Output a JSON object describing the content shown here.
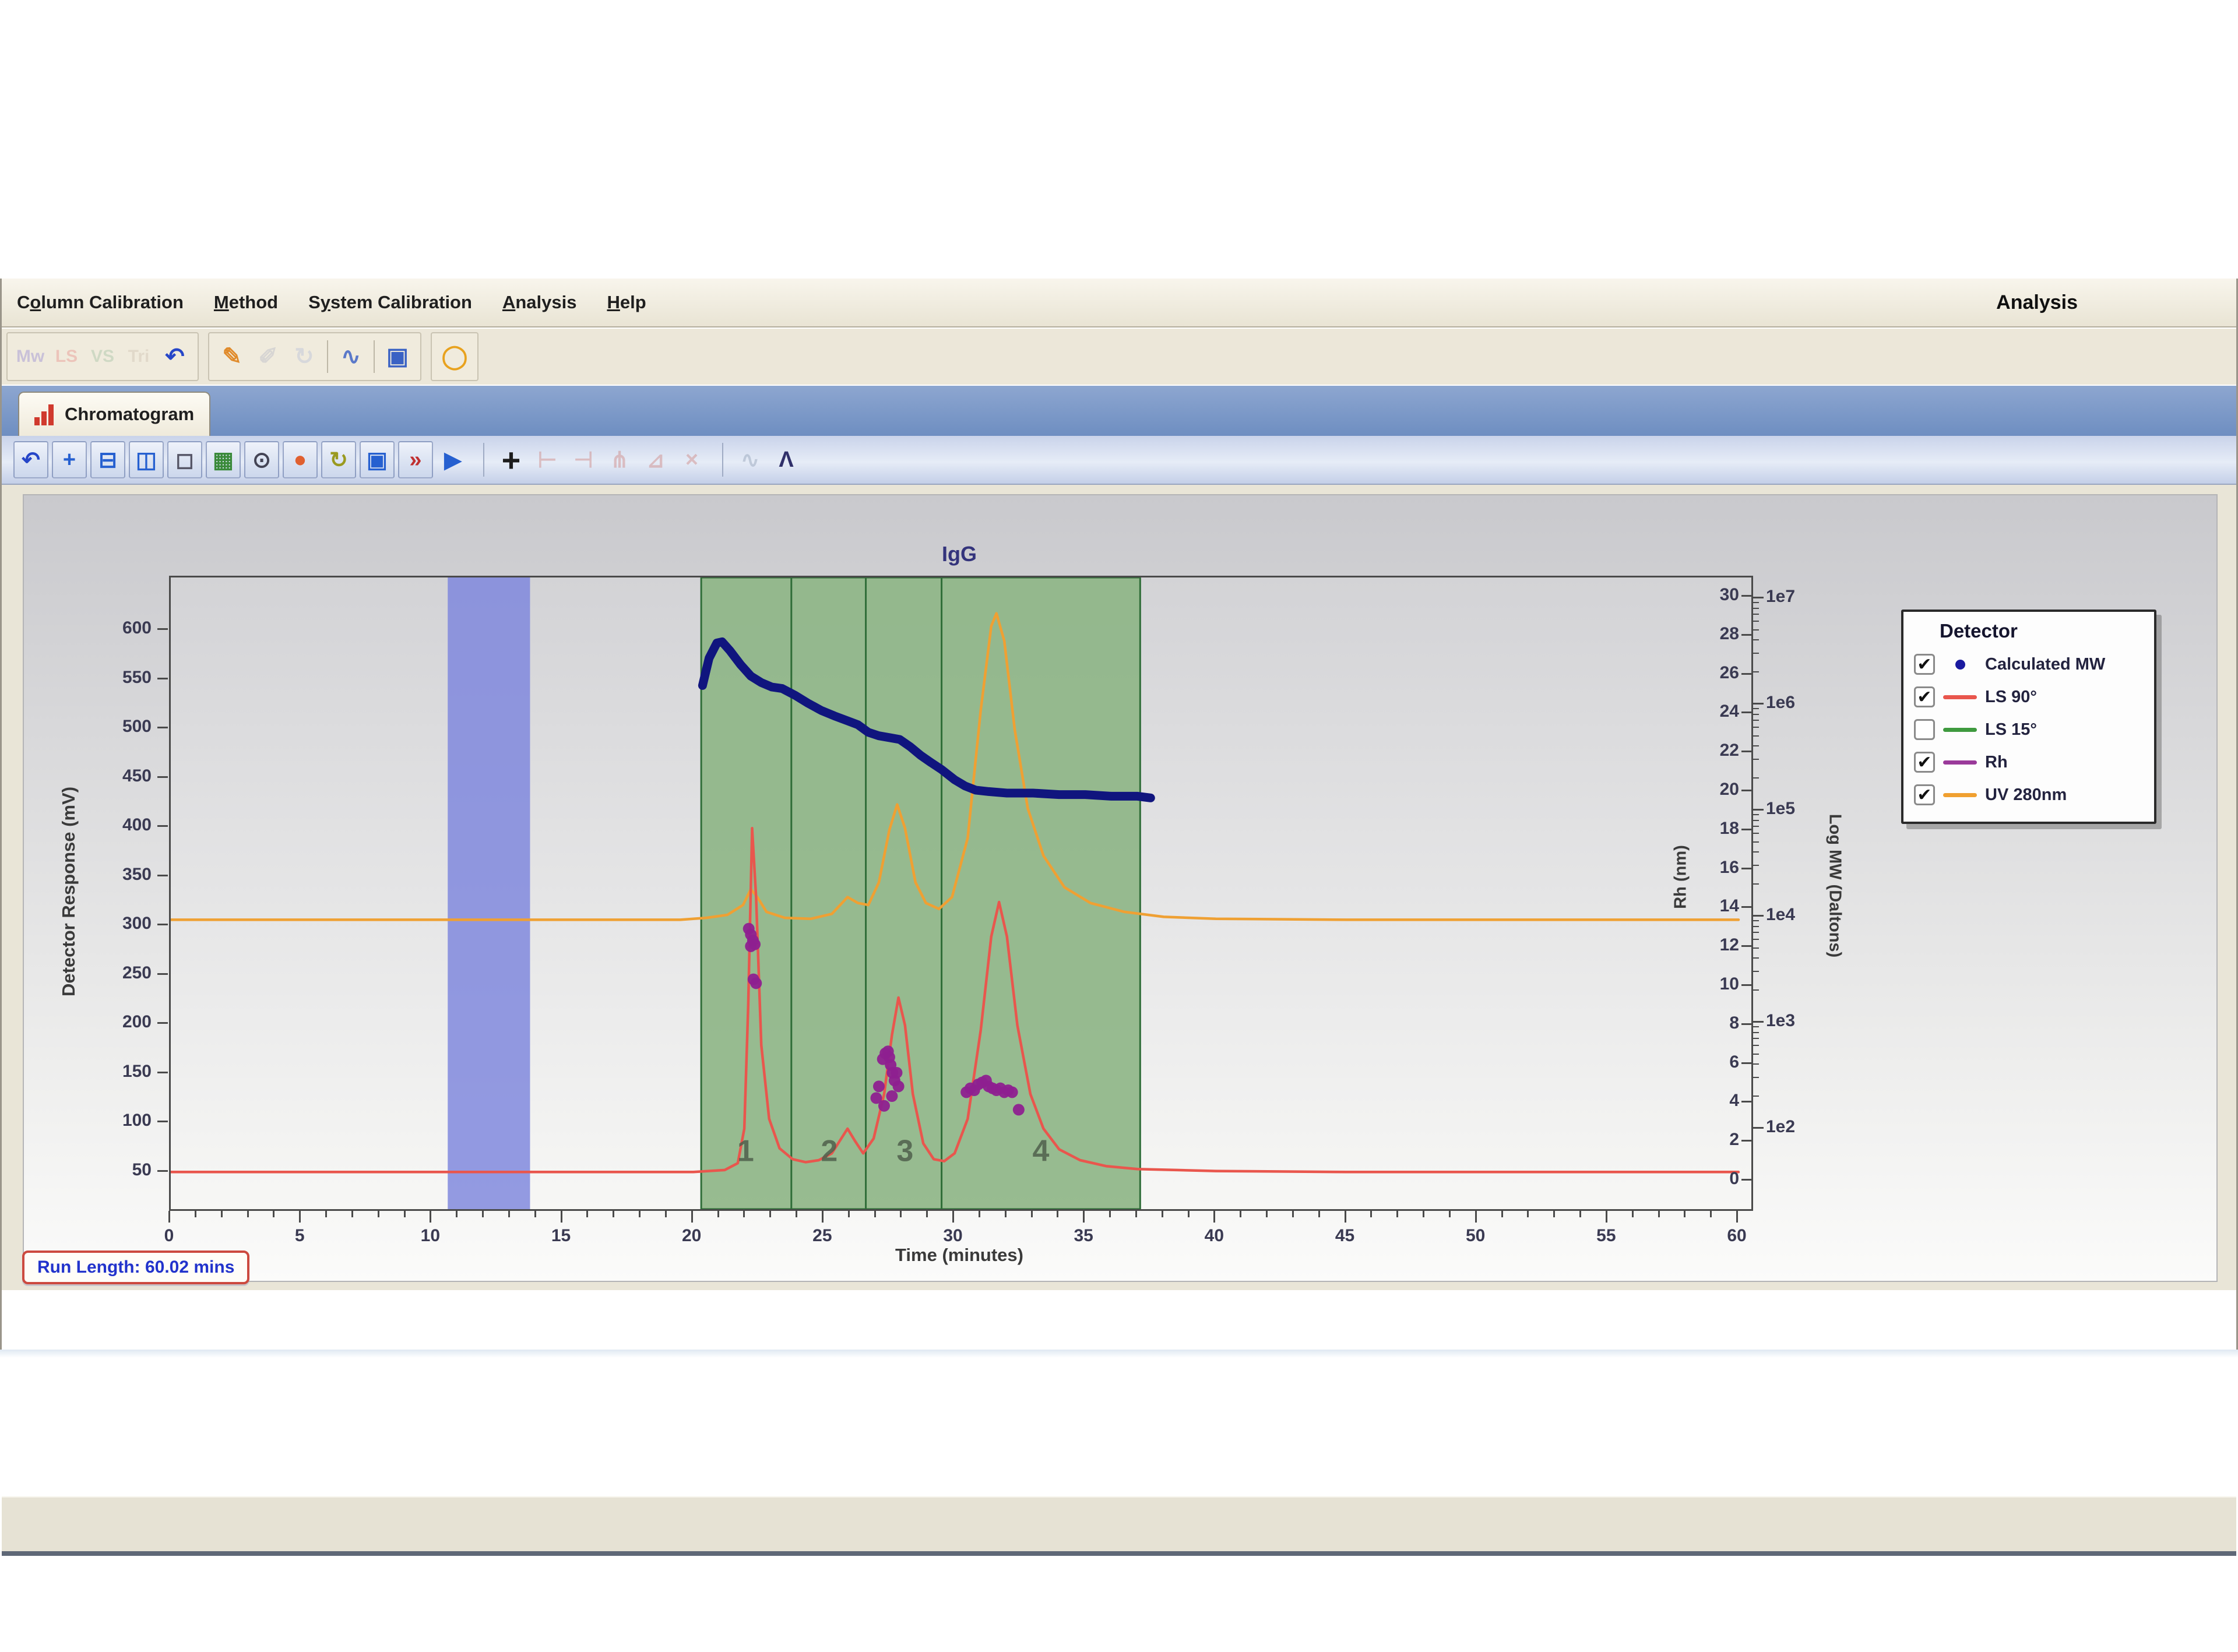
{
  "menu": {
    "items": [
      {
        "label": "Column Calibration",
        "underline_at": 1
      },
      {
        "label": "Method",
        "underline_at": 0
      },
      {
        "label": "System Calibration",
        "underline_at": 1
      },
      {
        "label": "Analysis",
        "underline_at": 0
      },
      {
        "label": "Help",
        "underline_at": 0
      }
    ],
    "right_label": "Analysis"
  },
  "toolbar_main": {
    "groups": [
      {
        "icons": [
          {
            "name": "mw-view-icon",
            "glyph": "Mw",
            "color": "#9b8fd4",
            "disabled": true
          },
          {
            "name": "ls-view-icon",
            "glyph": "LS",
            "color": "#e89790",
            "disabled": true
          },
          {
            "name": "vs-view-icon",
            "glyph": "VS",
            "color": "#a8c4a8",
            "disabled": true
          },
          {
            "name": "tri-view-icon",
            "glyph": "Tri",
            "color": "#cfc4b4",
            "disabled": true
          },
          {
            "name": "undo-icon",
            "glyph": "↶",
            "color": "#2646c8",
            "disabled": false
          }
        ]
      },
      {
        "icons": [
          {
            "name": "report-icon",
            "glyph": "✎",
            "color": "#e08a2a",
            "disabled": false
          },
          {
            "name": "edit-icon",
            "glyph": "✐",
            "color": "#b9bcc9",
            "disabled": true
          },
          {
            "name": "refresh-icon",
            "glyph": "↻",
            "color": "#b9c2d9",
            "disabled": true
          },
          {
            "name": "sep"
          },
          {
            "name": "calibration-plot-icon",
            "glyph": "∿",
            "color": "#5b79c9",
            "disabled": false
          },
          {
            "name": "sep"
          },
          {
            "name": "save-icon",
            "glyph": "▣",
            "color": "#3a62c4",
            "disabled": false
          }
        ]
      },
      {
        "icons": [
          {
            "name": "about-ring-icon",
            "glyph": "◯",
            "color": "#e8a21e",
            "disabled": false
          }
        ]
      }
    ]
  },
  "tab": {
    "label": "Chromatogram"
  },
  "toolbar_chart": {
    "icons": [
      {
        "name": "undo-zoom-icon",
        "glyph": "↶",
        "color": "#2646c8"
      },
      {
        "name": "pan-icon",
        "glyph": "+",
        "color": "#2660d0"
      },
      {
        "name": "split-horizontal-icon",
        "glyph": "⊟",
        "color": "#2660d0"
      },
      {
        "name": "split-vertical-icon",
        "glyph": "◫",
        "color": "#2660d0"
      },
      {
        "name": "zoom-box-icon",
        "glyph": "◻",
        "color": "#555566"
      },
      {
        "name": "display-options-icon",
        "glyph": "▦",
        "color": "#3a8a3a"
      },
      {
        "name": "data-cursor-icon",
        "glyph": "⊙",
        "color": "#444455"
      },
      {
        "name": "marker-icon",
        "glyph": "●",
        "color": "#e06030"
      },
      {
        "name": "autoscale-icon",
        "glyph": "↻",
        "color": "#9a9a20"
      },
      {
        "name": "info-box-icon",
        "glyph": "▣",
        "color": "#2660d0"
      },
      {
        "name": "export-chart-icon",
        "glyph": "»",
        "color": "#c03030"
      },
      {
        "name": "play-icon",
        "glyph": "▶",
        "color": "#2660d0",
        "noframe": true
      },
      {
        "name": "sep"
      },
      {
        "name": "add-peak-icon",
        "glyph": "+",
        "color": "#1c1c1c",
        "big": true,
        "noframe": true
      },
      {
        "name": "peak-start-icon",
        "glyph": "⊢",
        "color": "#cc7a74",
        "disabled": true,
        "noframe": true
      },
      {
        "name": "peak-end-icon",
        "glyph": "⊣",
        "color": "#cc7a74",
        "disabled": true,
        "noframe": true
      },
      {
        "name": "peak-split-icon",
        "glyph": "⋔",
        "color": "#cc7a74",
        "disabled": true,
        "noframe": true
      },
      {
        "name": "peak-skim-icon",
        "glyph": "⊿",
        "color": "#cc7a74",
        "disabled": true,
        "noframe": true
      },
      {
        "name": "peak-delete-icon",
        "glyph": "×",
        "color": "#cc7a74",
        "disabled": true,
        "noframe": true
      },
      {
        "name": "sep"
      },
      {
        "name": "baseline-icon",
        "glyph": "∿",
        "color": "#8a9ab0",
        "disabled": true,
        "noframe": true
      },
      {
        "name": "integrate-icon",
        "glyph": "Λ",
        "color": "#30306a",
        "noframe": true
      }
    ]
  },
  "legend": {
    "title": "Detector",
    "items": [
      {
        "label": "Calculated MW",
        "checked": true,
        "marker": "dot",
        "color": "#1a1aa0"
      },
      {
        "label": "LS 90°",
        "checked": true,
        "marker": "line",
        "color": "#e9564d"
      },
      {
        "label": "LS 15°",
        "checked": false,
        "marker": "line",
        "color": "#3f9a3f"
      },
      {
        "label": "Rh",
        "checked": true,
        "marker": "line",
        "color": "#9a3a9a"
      },
      {
        "label": "UV 280nm",
        "checked": true,
        "marker": "line",
        "color": "#f0a030"
      }
    ]
  },
  "status": {
    "run_length_label": "Run Length: 60.02 mins"
  },
  "chart_data": {
    "type": "line",
    "title": "IgG",
    "x_axis": {
      "label": "Time (minutes)",
      "min": 0,
      "max": 60,
      "major_tick_step": 5,
      "minor_tick_step": 1
    },
    "y_axis_left": {
      "label": "Detector Response (mV)",
      "ylim": [
        15,
        650
      ],
      "ticks": [
        50,
        100,
        150,
        200,
        250,
        300,
        350,
        400,
        450,
        500,
        550,
        600
      ]
    },
    "y_axis_right_inner": {
      "label": "Rh (nm)",
      "min": 0,
      "max": 30,
      "tick_step": 2
    },
    "y_axis_right_outer": {
      "label": "Log MW (Daltons)",
      "tick_labels": [
        "1e7",
        "1e6",
        "1e5",
        "1e4",
        "1e3",
        "1e2"
      ]
    },
    "regions": {
      "blue_band": {
        "from": 10.6,
        "to": 13.75,
        "color": "#7d85dd"
      },
      "green_band": {
        "from": 20.3,
        "to": 37.1,
        "color": "#8db585",
        "border_color": "#2f6d38",
        "dividers": [
          23.75,
          26.6,
          29.5
        ]
      }
    },
    "peak_labels": [
      {
        "label": "1",
        "time": 22.0
      },
      {
        "label": "2",
        "time": 25.2
      },
      {
        "label": "3",
        "time": 28.1
      },
      {
        "label": "4",
        "time": 33.3
      }
    ],
    "series": [
      {
        "name": "UV 280nm",
        "axis": "mV",
        "color": "#efa033",
        "width": 4.5,
        "points": [
          [
            0,
            307
          ],
          [
            5,
            307
          ],
          [
            10,
            307
          ],
          [
            15,
            307
          ],
          [
            19.5,
            307
          ],
          [
            20.5,
            309
          ],
          [
            21.3,
            312
          ],
          [
            21.9,
            322
          ],
          [
            22.2,
            338
          ],
          [
            22.45,
            330
          ],
          [
            22.8,
            315
          ],
          [
            23.5,
            309
          ],
          [
            24.5,
            308
          ],
          [
            25.3,
            313
          ],
          [
            25.9,
            330
          ],
          [
            26.3,
            324
          ],
          [
            26.7,
            322
          ],
          [
            27.1,
            345
          ],
          [
            27.5,
            398
          ],
          [
            27.8,
            424
          ],
          [
            28.1,
            400
          ],
          [
            28.5,
            345
          ],
          [
            28.9,
            324
          ],
          [
            29.4,
            318
          ],
          [
            29.9,
            330
          ],
          [
            30.5,
            390
          ],
          [
            31.0,
            520
          ],
          [
            31.4,
            605
          ],
          [
            31.6,
            618
          ],
          [
            31.9,
            590
          ],
          [
            32.3,
            500
          ],
          [
            32.8,
            420
          ],
          [
            33.4,
            372
          ],
          [
            34.2,
            340
          ],
          [
            35.2,
            324
          ],
          [
            36.5,
            315
          ],
          [
            38,
            310
          ],
          [
            40,
            308
          ],
          [
            45,
            307
          ],
          [
            50,
            307
          ],
          [
            55,
            307
          ],
          [
            60,
            307
          ]
        ]
      },
      {
        "name": "LS 90°",
        "axis": "mV",
        "color": "#e9564d",
        "width": 4.5,
        "points": [
          [
            0,
            51
          ],
          [
            5,
            51
          ],
          [
            10,
            51
          ],
          [
            15,
            51
          ],
          [
            20,
            51
          ],
          [
            21.2,
            53
          ],
          [
            21.7,
            60
          ],
          [
            21.95,
            95
          ],
          [
            22.1,
            220
          ],
          [
            22.25,
            400
          ],
          [
            22.4,
            330
          ],
          [
            22.6,
            180
          ],
          [
            22.9,
            105
          ],
          [
            23.3,
            75
          ],
          [
            23.8,
            64
          ],
          [
            24.3,
            61
          ],
          [
            24.8,
            63
          ],
          [
            25.3,
            70
          ],
          [
            25.9,
            95
          ],
          [
            26.2,
            82
          ],
          [
            26.5,
            70
          ],
          [
            26.9,
            85
          ],
          [
            27.3,
            130
          ],
          [
            27.6,
            190
          ],
          [
            27.85,
            228
          ],
          [
            28.1,
            200
          ],
          [
            28.4,
            130
          ],
          [
            28.8,
            80
          ],
          [
            29.2,
            64
          ],
          [
            29.6,
            62
          ],
          [
            30.0,
            70
          ],
          [
            30.5,
            105
          ],
          [
            31.0,
            195
          ],
          [
            31.4,
            290
          ],
          [
            31.7,
            325
          ],
          [
            32.0,
            290
          ],
          [
            32.4,
            200
          ],
          [
            32.9,
            130
          ],
          [
            33.4,
            95
          ],
          [
            34.0,
            74
          ],
          [
            34.8,
            63
          ],
          [
            35.8,
            57
          ],
          [
            37.0,
            54
          ],
          [
            38.5,
            53
          ],
          [
            40,
            52
          ],
          [
            45,
            51
          ],
          [
            50,
            51
          ],
          [
            55,
            51
          ],
          [
            60,
            51
          ]
        ]
      },
      {
        "name": "Calculated MW",
        "axis": "logMW",
        "color": "#10157e",
        "width": 15,
        "points": [
          [
            20.35,
            1550000
          ],
          [
            20.6,
            2800000
          ],
          [
            20.9,
            3900000
          ],
          [
            21.1,
            4000000
          ],
          [
            21.4,
            3300000
          ],
          [
            21.8,
            2450000
          ],
          [
            22.2,
            1900000
          ],
          [
            22.6,
            1650000
          ],
          [
            23.0,
            1500000
          ],
          [
            23.4,
            1450000
          ],
          [
            23.9,
            1250000
          ],
          [
            24.4,
            1050000
          ],
          [
            24.9,
            900000
          ],
          [
            25.4,
            800000
          ],
          [
            25.9,
            720000
          ],
          [
            26.3,
            660000
          ],
          [
            26.7,
            560000
          ],
          [
            27.1,
            520000
          ],
          [
            27.5,
            500000
          ],
          [
            27.9,
            480000
          ],
          [
            28.3,
            410000
          ],
          [
            28.7,
            340000
          ],
          [
            29.1,
            290000
          ],
          [
            29.5,
            250000
          ],
          [
            30.0,
            200000
          ],
          [
            30.4,
            175000
          ],
          [
            30.8,
            160000
          ],
          [
            31.3,
            155000
          ],
          [
            32.0,
            150000
          ],
          [
            33.0,
            150000
          ],
          [
            34.0,
            145000
          ],
          [
            35.0,
            145000
          ],
          [
            36.0,
            140000
          ],
          [
            37.0,
            140000
          ],
          [
            37.5,
            135000
          ]
        ]
      },
      {
        "name": "Rh",
        "axis": "Rh",
        "color": "#8e2090",
        "type": "scatter",
        "points": [
          [
            22.12,
            13.0
          ],
          [
            22.2,
            12.7
          ],
          [
            22.28,
            12.4
          ],
          [
            22.2,
            12.1
          ],
          [
            22.35,
            12.2
          ],
          [
            22.3,
            10.4
          ],
          [
            22.4,
            10.2
          ],
          [
            27.0,
            4.3
          ],
          [
            27.1,
            4.9
          ],
          [
            27.25,
            6.3
          ],
          [
            27.35,
            6.6
          ],
          [
            27.45,
            6.7
          ],
          [
            27.5,
            6.4
          ],
          [
            27.55,
            6.0
          ],
          [
            27.62,
            5.6
          ],
          [
            27.7,
            5.2
          ],
          [
            27.78,
            5.6
          ],
          [
            27.85,
            4.9
          ],
          [
            27.6,
            4.4
          ],
          [
            27.3,
            3.9
          ],
          [
            30.45,
            4.6
          ],
          [
            30.6,
            4.8
          ],
          [
            30.75,
            4.7
          ],
          [
            30.9,
            5.0
          ],
          [
            31.05,
            5.1
          ],
          [
            31.2,
            5.2
          ],
          [
            31.3,
            4.9
          ],
          [
            31.45,
            4.8
          ],
          [
            31.6,
            4.7
          ],
          [
            31.75,
            4.8
          ],
          [
            31.9,
            4.6
          ],
          [
            32.05,
            4.7
          ],
          [
            32.2,
            4.6
          ],
          [
            32.45,
            3.7
          ]
        ]
      }
    ]
  }
}
